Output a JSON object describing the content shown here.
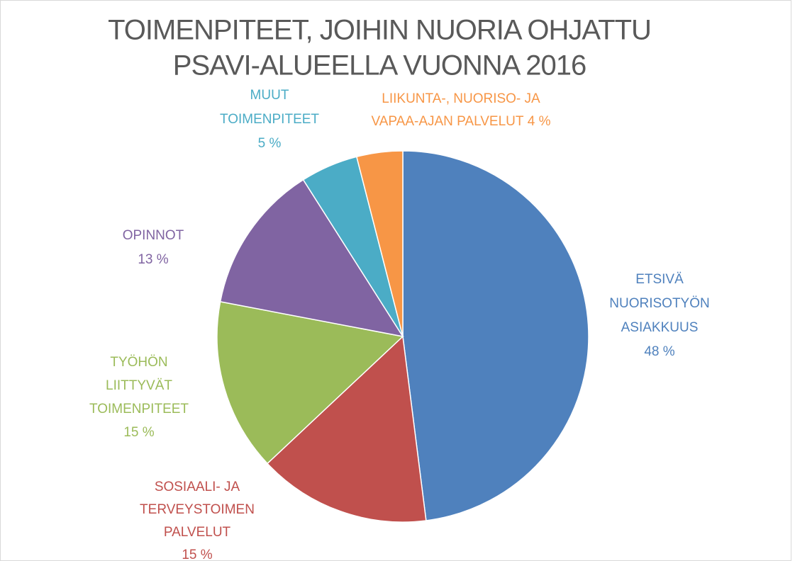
{
  "chart_data": {
    "type": "pie",
    "title": [
      "TOIMENPITEET, JOIHIN NUORIA OHJATTU",
      "PSAVI-ALUEELLA VUONNA 2016"
    ],
    "categories": [
      [
        "ETSIVÄ",
        "NUORISOTYÖN",
        "ASIAKKUUS"
      ],
      [
        "SOSIAALI- JA",
        "TERVEYSTOIMEN",
        "PALVELUT"
      ],
      [
        "TYÖHÖN",
        "LIITTYVÄT",
        "TOIMENPITEET"
      ],
      [
        "OPINNOT"
      ],
      [
        "MUUT",
        "TOIMENPITEET"
      ],
      [
        "LIIKUNTA-, NUORISO- JA",
        "VAPAA-AJAN PALVELUT"
      ]
    ],
    "values": [
      48,
      15,
      15,
      13,
      5,
      4
    ],
    "value_labels": [
      "48 %",
      "15 %",
      "15 %",
      "13 %",
      "5 %",
      "4 %"
    ],
    "colors": [
      "#4f81bd",
      "#c0504d",
      "#9bbb59",
      "#8064a2",
      "#4bacc6",
      "#f79646"
    ]
  }
}
